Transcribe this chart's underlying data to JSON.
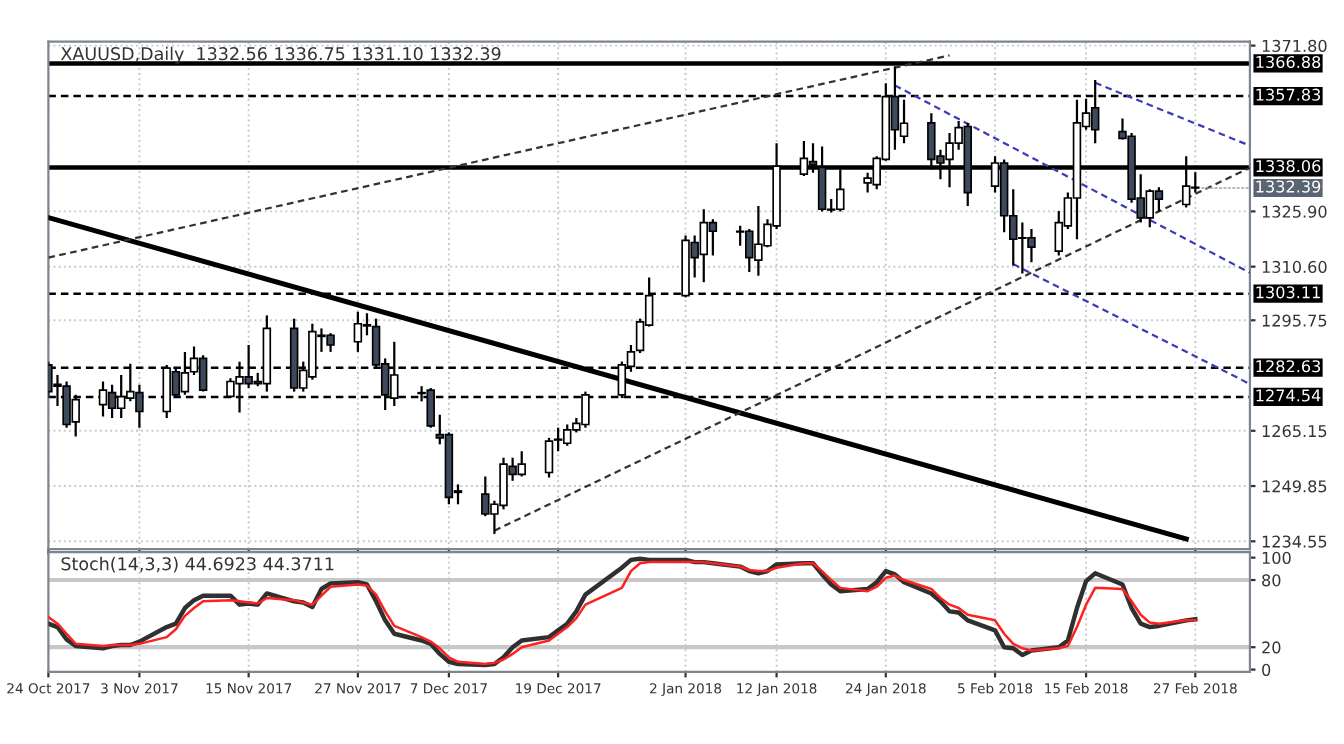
{
  "chart_data": [
    {
      "type": "candlestick",
      "title": "XAUUSD,Daily  1332.56 1336.75 1331.10 1332.39",
      "x": [
        "2017-10-24",
        "2017-10-25",
        "2017-10-26",
        "2017-10-27",
        "2017-10-30",
        "2017-10-31",
        "2017-11-01",
        "2017-11-02",
        "2017-11-03",
        "2017-11-06",
        "2017-11-07",
        "2017-11-08",
        "2017-11-09",
        "2017-11-10",
        "2017-11-13",
        "2017-11-14",
        "2017-11-15",
        "2017-11-16",
        "2017-11-17",
        "2017-11-20",
        "2017-11-21",
        "2017-11-22",
        "2017-11-23",
        "2017-11-24",
        "2017-11-27",
        "2017-11-28",
        "2017-11-29",
        "2017-11-30",
        "2017-12-01",
        "2017-12-04",
        "2017-12-05",
        "2017-12-06",
        "2017-12-07",
        "2017-12-08",
        "2017-12-11",
        "2017-12-12",
        "2017-12-13",
        "2017-12-14",
        "2017-12-15",
        "2017-12-18",
        "2017-12-19",
        "2017-12-20",
        "2017-12-21",
        "2017-12-22",
        "2017-12-26",
        "2017-12-27",
        "2017-12-28",
        "2017-12-29",
        "2018-01-02",
        "2018-01-03",
        "2018-01-04",
        "2018-01-05",
        "2018-01-08",
        "2018-01-09",
        "2018-01-10",
        "2018-01-11",
        "2018-01-12",
        "2018-01-15",
        "2018-01-16",
        "2018-01-17",
        "2018-01-18",
        "2018-01-19",
        "2018-01-22",
        "2018-01-23",
        "2018-01-24",
        "2018-01-25",
        "2018-01-26",
        "2018-01-29",
        "2018-01-30",
        "2018-01-31",
        "2018-02-01",
        "2018-02-02",
        "2018-02-05",
        "2018-02-06",
        "2018-02-07",
        "2018-02-08",
        "2018-02-09",
        "2018-02-12",
        "2018-02-13",
        "2018-02-14",
        "2018-02-15",
        "2018-02-16",
        "2018-02-19",
        "2018-02-20",
        "2018-02-21",
        "2018-02-22",
        "2018-02-23",
        "2018-02-26",
        "2018-02-27"
      ],
      "ohlc": [
        [
          1283.4,
          1284.3,
          1274.2,
          1276.0
        ],
        [
          1278.0,
          1280.6,
          1272.0,
          1277.5
        ],
        [
          1277.5,
          1278.8,
          1266.0,
          1266.9
        ],
        [
          1267.6,
          1275.1,
          1263.6,
          1273.8
        ],
        [
          1272.4,
          1278.8,
          1269.1,
          1276.4
        ],
        [
          1275.7,
          1277.9,
          1268.7,
          1271.4
        ],
        [
          1271.4,
          1280.6,
          1268.7,
          1274.6
        ],
        [
          1274.2,
          1283.7,
          1273.3,
          1276.0
        ],
        [
          1275.7,
          1277.9,
          1266.0,
          1270.5
        ],
        [
          1270.5,
          1283.4,
          1268.7,
          1282.5
        ],
        [
          1281.5,
          1282.5,
          1274.2,
          1275.1
        ],
        [
          1276.0,
          1287.0,
          1275.1,
          1281.2
        ],
        [
          1281.5,
          1288.5,
          1280.6,
          1285.2
        ],
        [
          1285.2,
          1286.1,
          1276.0,
          1276.4
        ],
        [
          1274.7,
          1279.7,
          1274.2,
          1278.8
        ],
        [
          1278.2,
          1284.3,
          1270.2,
          1280.1
        ],
        [
          1280.1,
          1288.9,
          1277.0,
          1278.2
        ],
        [
          1278.8,
          1281.2,
          1277.5,
          1278.2
        ],
        [
          1278.2,
          1297.1,
          1276.0,
          1293.5
        ],
        [
          1293.5,
          1296.2,
          1276.0,
          1277.0
        ],
        [
          1277.0,
          1284.3,
          1276.0,
          1281.9
        ],
        [
          1280.1,
          1294.8,
          1279.3,
          1292.6
        ],
        [
          1291.6,
          1293.5,
          1287.0,
          1291.3
        ],
        [
          1291.6,
          1292.2,
          1287.0,
          1288.9
        ],
        [
          1289.8,
          1298.1,
          1287.0,
          1294.8
        ],
        [
          1294.2,
          1297.7,
          1291.6,
          1294.5
        ],
        [
          1294.0,
          1296.2,
          1282.5,
          1283.4
        ],
        [
          1283.7,
          1285.2,
          1270.9,
          1275.1
        ],
        [
          1274.2,
          1289.8,
          1272.0,
          1280.6
        ],
        [
          1275.7,
          1277.5,
          1273.3,
          1275.5
        ],
        [
          1276.4,
          1277.0,
          1266.0,
          1266.5
        ],
        [
          1264.1,
          1269.6,
          1261.4,
          1263.2
        ],
        [
          1264.1,
          1264.7,
          1244.8,
          1246.7
        ],
        [
          1248.1,
          1250.3,
          1244.8,
          1248.5
        ],
        [
          1247.6,
          1252.5,
          1241.5,
          1242.1
        ],
        [
          1242.1,
          1245.8,
          1236.6,
          1244.8
        ],
        [
          1244.5,
          1257.7,
          1243.4,
          1255.9
        ],
        [
          1255.3,
          1257.7,
          1251.3,
          1253.1
        ],
        [
          1253.1,
          1259.5,
          1252.5,
          1255.9
        ],
        [
          1253.6,
          1263.2,
          1252.2,
          1262.3
        ],
        [
          1262.8,
          1266.0,
          1259.5,
          1262.6
        ],
        [
          1261.7,
          1266.9,
          1261.0,
          1265.4
        ],
        [
          1265.4,
          1268.7,
          1264.7,
          1267.2
        ],
        [
          1266.9,
          1276.0,
          1266.0,
          1275.1
        ],
        [
          1275.1,
          1284.3,
          1274.2,
          1283.4
        ],
        [
          1283.0,
          1288.9,
          1281.5,
          1287.0
        ],
        [
          1287.4,
          1296.2,
          1286.7,
          1295.3
        ],
        [
          1294.4,
          1307.6,
          1294.0,
          1302.6
        ],
        [
          1302.6,
          1319.2,
          1302.1,
          1317.9
        ],
        [
          1317.3,
          1319.2,
          1307.6,
          1313.1
        ],
        [
          1314.0,
          1326.5,
          1306.3,
          1322.8
        ],
        [
          1322.8,
          1323.7,
          1313.7,
          1320.4
        ],
        [
          1320.4,
          1321.9,
          1316.4,
          1320.2
        ],
        [
          1320.4,
          1321.0,
          1309.1,
          1313.1
        ],
        [
          1312.4,
          1327.4,
          1308.1,
          1316.8
        ],
        [
          1316.4,
          1323.7,
          1316.0,
          1322.3
        ],
        [
          1321.9,
          1344.8,
          1321.0,
          1338.4
        ],
        [
          1336.2,
          1345.4,
          1335.7,
          1340.6
        ],
        [
          1339.7,
          1344.8,
          1336.6,
          1338.8
        ],
        [
          1338.1,
          1343.9,
          1325.9,
          1326.5
        ],
        [
          1326.5,
          1329.3,
          1325.6,
          1326.3
        ],
        [
          1326.5,
          1337.5,
          1325.9,
          1332.0
        ],
        [
          1333.8,
          1336.6,
          1331.1,
          1335.1
        ],
        [
          1333.3,
          1341.2,
          1332.0,
          1340.6
        ],
        [
          1340.3,
          1361.4,
          1339.9,
          1357.7
        ],
        [
          1357.7,
          1366.0,
          1343.0,
          1348.5
        ],
        [
          1346.7,
          1356.8,
          1344.8,
          1350.3
        ],
        [
          1350.4,
          1353.1,
          1337.5,
          1340.3
        ],
        [
          1341.2,
          1343.0,
          1334.8,
          1339.3
        ],
        [
          1340.3,
          1347.6,
          1332.6,
          1344.8
        ],
        [
          1344.8,
          1350.9,
          1343.0,
          1349.1
        ],
        [
          1349.4,
          1350.4,
          1327.4,
          1331.1
        ],
        [
          1332.9,
          1341.2,
          1331.1,
          1339.3
        ],
        [
          1339.3,
          1340.3,
          1320.1,
          1324.7
        ],
        [
          1324.7,
          1332.0,
          1310.9,
          1318.2
        ],
        [
          1318.6,
          1322.8,
          1308.7,
          1318.5
        ],
        [
          1318.6,
          1321.0,
          1311.8,
          1316.0
        ],
        [
          1314.9,
          1326.0,
          1313.7,
          1322.8
        ],
        [
          1321.9,
          1331.1,
          1321.0,
          1329.6
        ],
        [
          1329.6,
          1356.8,
          1318.2,
          1350.4
        ],
        [
          1349.4,
          1357.1,
          1348.5,
          1353.1
        ],
        [
          1354.6,
          1362.3,
          1344.8,
          1348.5
        ],
        [
          1348.0,
          1351.6,
          1345.8,
          1346.1
        ],
        [
          1346.7,
          1347.6,
          1328.3,
          1329.3
        ],
        [
          1329.6,
          1336.2,
          1322.8,
          1324.1
        ],
        [
          1324.1,
          1332.0,
          1321.5,
          1331.5
        ],
        [
          1331.5,
          1332.6,
          1325.9,
          1329.3
        ],
        [
          1327.8,
          1341.2,
          1327.0,
          1332.9
        ],
        [
          1332.56,
          1336.75,
          1331.1,
          1332.39
        ]
      ],
      "colors": [
        "#3d4a5c",
        "#3d4a5c",
        "#3d4a5c",
        "#ffffff",
        "#ffffff",
        "#3d4a5c",
        "#ffffff",
        "#ffffff",
        "#3d4a5c",
        "#ffffff",
        "#3d4a5c",
        "#ffffff",
        "#ffffff",
        "#3d4a5c",
        "#ffffff",
        "#ffffff",
        "#3d4a5c",
        "#3d4a5c",
        "#ffffff",
        "#3d4a5c",
        "#ffffff",
        "#ffffff",
        "#3d4a5c",
        "#3d4a5c",
        "#ffffff",
        "#ffffff",
        "#3d4a5c",
        "#3d4a5c",
        "#ffffff",
        "#3d4a5c",
        "#3d4a5c",
        "#3d4a5c",
        "#3d4a5c",
        "#ffffff",
        "#3d4a5c",
        "#ffffff",
        "#ffffff",
        "#3d4a5c",
        "#ffffff",
        "#ffffff",
        "#3d4a5c",
        "#ffffff",
        "#ffffff",
        "#ffffff",
        "#ffffff",
        "#ffffff",
        "#ffffff",
        "#ffffff",
        "#ffffff",
        "#3d4a5c",
        "#ffffff",
        "#3d4a5c",
        "#3d4a5c",
        "#3d4a5c",
        "#ffffff",
        "#ffffff",
        "#ffffff",
        "#ffffff",
        "#3d4a5c",
        "#3d4a5c",
        "#3d4a5c",
        "#ffffff",
        "#ffffff",
        "#ffffff",
        "#ffffff",
        "#3d4a5c",
        "#ffffff",
        "#3d4a5c",
        "#3d4a5c",
        "#ffffff",
        "#ffffff",
        "#3d4a5c",
        "#ffffff",
        "#3d4a5c",
        "#3d4a5c",
        "#3d4a5c",
        "#3d4a5c",
        "#ffffff",
        "#ffffff",
        "#ffffff",
        "#ffffff",
        "#3d4a5c",
        "#3d4a5c",
        "#3d4a5c",
        "#3d4a5c",
        "#ffffff",
        "#3d4a5c",
        "#ffffff",
        "#3d4a5c"
      ],
      "series": [
        {
          "type": "line",
          "color": "#000000",
          "line_style": "solid",
          "x": [
            "2017-10-24",
            "2018-02-26"
          ],
          "values": [
            1324.2,
            1235.2
          ]
        },
        {
          "type": "line",
          "color": "#333333",
          "line_style": "dashed",
          "x": [
            "2017-10-24",
            "2018-01-31"
          ],
          "values": [
            1313.1,
            1369.1
          ]
        },
        {
          "type": "line",
          "color": "#333333",
          "line_style": "dashed",
          "x": [
            "2017-12-12",
            "2018-03-05"
          ],
          "values": [
            1237.5,
            1338.0
          ]
        },
        {
          "type": "line",
          "color": "#3c3cb4",
          "line_style": "dashed",
          "x": [
            "2018-01-25",
            "2018-03-05"
          ],
          "values": [
            1360.8,
            1308.9
          ]
        },
        {
          "type": "line",
          "color": "#3c3cb4",
          "line_style": "dashed",
          "x": [
            "2018-02-07",
            "2018-03-05"
          ],
          "values": [
            1311.3,
            1278.1
          ]
        },
        {
          "type": "line",
          "color": "#3c3cb4",
          "line_style": "dashed",
          "x": [
            "2018-02-16",
            "2018-03-05"
          ],
          "values": [
            1361.5,
            1344.1
          ]
        }
      ],
      "xlim": [
        "2017-10-24",
        "2018-03-05"
      ],
      "xticks": [
        {
          "value": "2017-10-24",
          "label": null
        },
        {
          "value": "2017-11-03",
          "label": null
        },
        {
          "value": "2017-11-15",
          "label": null
        },
        {
          "value": "2017-11-27",
          "label": null
        },
        {
          "value": "2017-12-07",
          "label": null
        },
        {
          "value": "2017-12-19",
          "label": null
        },
        {
          "value": "2018-01-02",
          "label": null
        },
        {
          "value": "2018-01-12",
          "label": null
        },
        {
          "value": "2018-01-24",
          "label": null
        },
        {
          "value": "2018-02-05",
          "label": null
        },
        {
          "value": "2018-02-15",
          "label": null
        },
        {
          "value": "2018-02-27",
          "label": null
        }
      ],
      "ylim": [
        1232.4,
        1372.9
      ],
      "yticks": [
        {
          "value": 1371.8,
          "label": "1371.80"
        },
        {
          "value": 1325.9,
          "label": "1325.90"
        },
        {
          "value": 1310.6,
          "label": "1310.60"
        },
        {
          "value": 1295.75,
          "label": "1295.75"
        },
        {
          "value": 1265.15,
          "label": "1265.15"
        },
        {
          "value": 1249.85,
          "label": "1249.85"
        },
        {
          "value": 1234.55,
          "label": "1234.55"
        }
      ],
      "ref_lines": [
        {
          "axis": "y",
          "value": 1366.88,
          "label": "1366.88",
          "color": "#000000",
          "line_style": "solid"
        },
        {
          "axis": "y",
          "value": 1357.83,
          "label": "1357.83",
          "color": "#000000",
          "line_style": "dashed"
        },
        {
          "axis": "y",
          "value": 1338.06,
          "label": "1338.06",
          "color": "#000000",
          "line_style": "solid"
        },
        {
          "axis": "y",
          "value": 1303.11,
          "label": "1303.11",
          "color": "#000000",
          "line_style": "dashed"
        },
        {
          "axis": "y",
          "value": 1282.63,
          "label": "1282.63",
          "color": "#000000",
          "line_style": "dashed"
        },
        {
          "axis": "y",
          "value": 1274.54,
          "label": "1274.54",
          "color": "#000000",
          "line_style": "dashed"
        }
      ],
      "annotations": [
        {
          "text": "1332.39",
          "x": "2018-02-27",
          "y": 1332.39
        }
      ],
      "grid": true,
      "tick_labels": "y"
    },
    {
      "type": "line",
      "title": "Stoch(14,3,3) 44.6923 44.3711",
      "x": [
        "2017-10-24",
        "2017-10-25",
        "2017-10-26",
        "2017-10-27",
        "2017-10-30",
        "2017-10-31",
        "2017-11-01",
        "2017-11-02",
        "2017-11-03",
        "2017-11-06",
        "2017-11-07",
        "2017-11-08",
        "2017-11-09",
        "2017-11-10",
        "2017-11-13",
        "2017-11-14",
        "2017-11-15",
        "2017-11-16",
        "2017-11-17",
        "2017-11-20",
        "2017-11-21",
        "2017-11-22",
        "2017-11-23",
        "2017-11-24",
        "2017-11-27",
        "2017-11-28",
        "2017-11-29",
        "2017-11-30",
        "2017-12-01",
        "2017-12-04",
        "2017-12-05",
        "2017-12-06",
        "2017-12-07",
        "2017-12-08",
        "2017-12-11",
        "2017-12-12",
        "2017-12-13",
        "2017-12-14",
        "2017-12-15",
        "2017-12-18",
        "2017-12-19",
        "2017-12-20",
        "2017-12-21",
        "2017-12-22",
        "2017-12-26",
        "2017-12-27",
        "2017-12-28",
        "2017-12-29",
        "2018-01-02",
        "2018-01-03",
        "2018-01-04",
        "2018-01-05",
        "2018-01-08",
        "2018-01-09",
        "2018-01-10",
        "2018-01-11",
        "2018-01-12",
        "2018-01-15",
        "2018-01-16",
        "2018-01-17",
        "2018-01-18",
        "2018-01-19",
        "2018-01-22",
        "2018-01-23",
        "2018-01-24",
        "2018-01-25",
        "2018-01-26",
        "2018-01-29",
        "2018-01-30",
        "2018-01-31",
        "2018-02-01",
        "2018-02-02",
        "2018-02-05",
        "2018-02-06",
        "2018-02-07",
        "2018-02-08",
        "2018-02-09",
        "2018-02-12",
        "2018-02-13",
        "2018-02-14",
        "2018-02-15",
        "2018-02-16",
        "2018-02-19",
        "2018-02-20",
        "2018-02-21",
        "2018-02-22",
        "2018-02-23",
        "2018-02-26",
        "2018-02-27"
      ],
      "series": [
        {
          "color": "#303030",
          "values": [
            41,
            38,
            27,
            21,
            19,
            21,
            22,
            22,
            25,
            38,
            41,
            55,
            62,
            66,
            66,
            58,
            59,
            58,
            68,
            61,
            60,
            56,
            72,
            77,
            78,
            76,
            61,
            44,
            32,
            26,
            23,
            14,
            7,
            5,
            4,
            5,
            11,
            20,
            26,
            29,
            35,
            41,
            52,
            67,
            91,
            98,
            99,
            98,
            98,
            96,
            96,
            95,
            92,
            88,
            86,
            88,
            94,
            95,
            95,
            85,
            76,
            70,
            72,
            78,
            88,
            85,
            78,
            68,
            61,
            52,
            51,
            44,
            35,
            20,
            19,
            13,
            17,
            20,
            26,
            55,
            79,
            86,
            76,
            55,
            41,
            38,
            39,
            44,
            45
          ]
        },
        {
          "color": "#ff2020",
          "values": [
            47,
            41,
            32,
            23,
            21,
            22,
            22,
            22,
            23,
            29,
            36,
            48,
            55,
            61,
            62,
            61,
            60,
            59,
            64,
            62,
            60,
            58,
            66,
            74,
            76,
            75,
            67,
            52,
            39,
            29,
            25,
            19,
            11,
            7,
            5,
            6,
            9,
            14,
            20,
            26,
            32,
            38,
            46,
            58,
            73,
            88,
            95,
            96,
            96,
            96,
            96,
            95,
            92,
            89,
            88,
            88,
            91,
            95,
            95,
            88,
            80,
            73,
            70,
            74,
            82,
            84,
            80,
            72,
            64,
            58,
            55,
            49,
            44,
            32,
            23,
            19,
            17,
            19,
            21,
            38,
            58,
            73,
            72,
            61,
            49,
            42,
            41,
            44,
            44
          ]
        }
      ],
      "xlim": [
        "2017-10-24",
        "2018-03-05"
      ],
      "xticks": [
        {
          "value": "2017-10-24",
          "label": "24 Oct 2017"
        },
        {
          "value": "2017-11-03",
          "label": "3 Nov 2017"
        },
        {
          "value": "2017-11-15",
          "label": "15 Nov 2017"
        },
        {
          "value": "2017-11-27",
          "label": "27 Nov 2017"
        },
        {
          "value": "2017-12-07",
          "label": "7 Dec 2017"
        },
        {
          "value": "2017-12-19",
          "label": "19 Dec 2017"
        },
        {
          "value": "2018-01-02",
          "label": "2 Jan 2018"
        },
        {
          "value": "2018-01-12",
          "label": "12 Jan 2018"
        },
        {
          "value": "2018-01-24",
          "label": "24 Jan 2018"
        },
        {
          "value": "2018-02-05",
          "label": "5 Feb 2018"
        },
        {
          "value": "2018-02-15",
          "label": "15 Feb 2018"
        },
        {
          "value": "2018-02-27",
          "label": "27 Feb 2018"
        }
      ],
      "ylim": [
        -2,
        105
      ],
      "yticks": [
        0,
        20,
        80,
        100
      ],
      "ref_lines": [
        {
          "axis": "y",
          "value": 80,
          "color": "#c8c8c8",
          "line_style": "solid"
        },
        {
          "axis": "y",
          "value": 20,
          "color": "#c8c8c8",
          "line_style": "solid"
        }
      ],
      "grid": "x"
    }
  ]
}
